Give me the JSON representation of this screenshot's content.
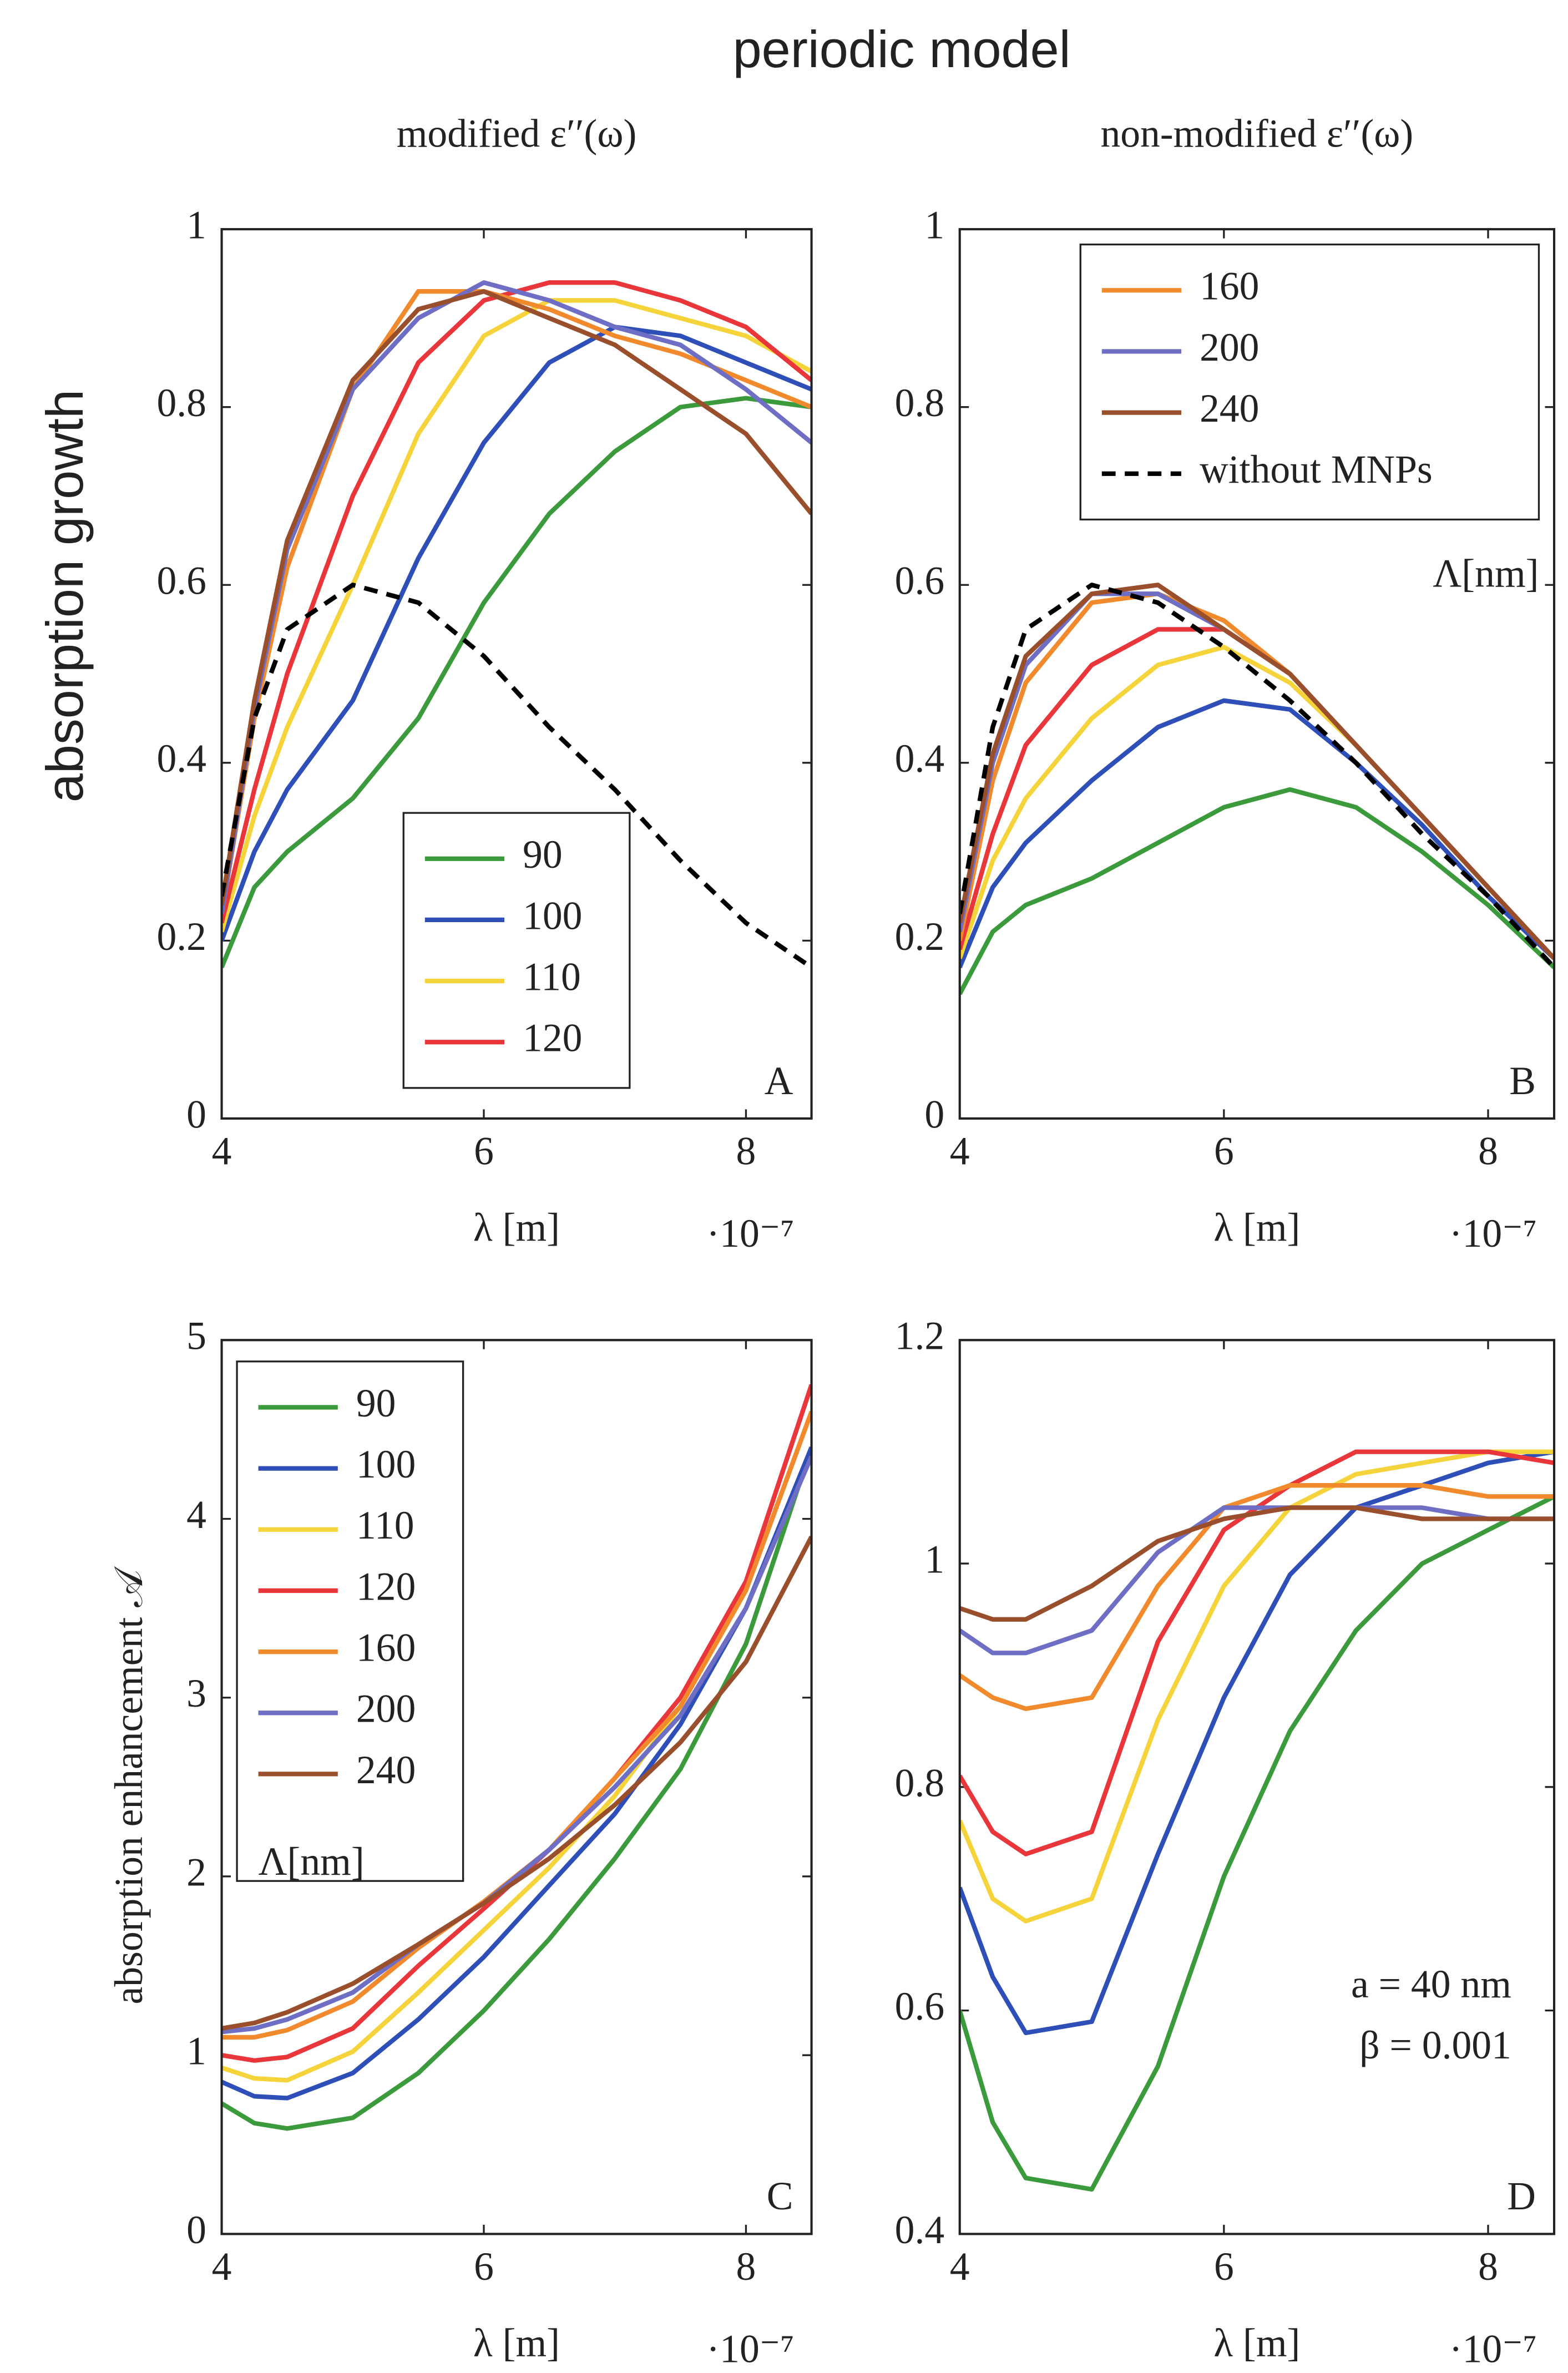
{
  "title": "periodic model",
  "ylabel": "absorption growth",
  "chart_data": [
    {
      "type": "line",
      "subtitle": "modified ε′′(ω)",
      "xlabel": "λ [m]",
      "x_multiplier": "·10⁻⁷",
      "panel_label": "A",
      "legend_loc": "lower center",
      "x": [
        4,
        4.25,
        4.5,
        5,
        5.5,
        6,
        6.5,
        7,
        7.5,
        8,
        8.5
      ],
      "xlim": [
        4,
        8.5
      ],
      "xticks": [
        4,
        6,
        8
      ],
      "ylim": [
        0,
        1
      ],
      "yticks": [
        0,
        0.2,
        0.4,
        0.6,
        0.8,
        1
      ],
      "series": [
        {
          "name": "90",
          "color": "#3b9a3b",
          "values": [
            0.17,
            0.26,
            0.3,
            0.36,
            0.45,
            0.58,
            0.68,
            0.75,
            0.8,
            0.81,
            0.8
          ]
        },
        {
          "name": "100",
          "color": "#2f4fb8",
          "values": [
            0.2,
            0.3,
            0.37,
            0.47,
            0.63,
            0.76,
            0.85,
            0.89,
            0.88,
            0.85,
            0.82
          ]
        },
        {
          "name": "110",
          "color": "#f5d33a",
          "values": [
            0.21,
            0.34,
            0.44,
            0.6,
            0.77,
            0.88,
            0.92,
            0.92,
            0.9,
            0.88,
            0.84
          ]
        },
        {
          "name": "120",
          "color": "#e8363a",
          "values": [
            0.22,
            0.37,
            0.5,
            0.7,
            0.85,
            0.92,
            0.94,
            0.94,
            0.92,
            0.89,
            0.83
          ]
        },
        {
          "color": "#f08a2c",
          "values": [
            0.23,
            0.45,
            0.62,
            0.82,
            0.93,
            0.93,
            0.91,
            0.88,
            0.86,
            0.83,
            0.8
          ]
        },
        {
          "color": "#6e6ec4",
          "values": [
            0.23,
            0.46,
            0.64,
            0.82,
            0.9,
            0.94,
            0.92,
            0.89,
            0.87,
            0.82,
            0.76
          ]
        },
        {
          "color": "#9a4f2c",
          "values": [
            0.24,
            0.47,
            0.65,
            0.83,
            0.91,
            0.93,
            0.9,
            0.87,
            0.82,
            0.77,
            0.68
          ]
        },
        {
          "color": "#000000",
          "style": "dashed",
          "values": [
            0.25,
            0.45,
            0.55,
            0.6,
            0.58,
            0.52,
            0.44,
            0.37,
            0.29,
            0.22,
            0.17
          ]
        }
      ]
    },
    {
      "type": "line",
      "subtitle": "non-modified ε′′(ω)",
      "xlabel": "λ [m]",
      "x_multiplier": "·10⁻⁷",
      "panel_label": "B",
      "legend_loc": "upper right",
      "legend_title": "Λ[nm]",
      "x": [
        4,
        4.25,
        4.5,
        5,
        5.5,
        6,
        6.5,
        7,
        7.5,
        8,
        8.5
      ],
      "xlim": [
        4,
        8.5
      ],
      "xticks": [
        4,
        6,
        8
      ],
      "ylim": [
        0,
        1
      ],
      "yticks": [
        0,
        0.2,
        0.4,
        0.6,
        0.8,
        1
      ],
      "series": [
        {
          "color": "#3b9a3b",
          "values": [
            0.14,
            0.21,
            0.24,
            0.27,
            0.31,
            0.35,
            0.37,
            0.35,
            0.3,
            0.24,
            0.17
          ]
        },
        {
          "color": "#2f4fb8",
          "values": [
            0.17,
            0.26,
            0.31,
            0.38,
            0.44,
            0.47,
            0.46,
            0.4,
            0.33,
            0.25,
            0.18
          ]
        },
        {
          "color": "#f5d33a",
          "values": [
            0.18,
            0.29,
            0.36,
            0.45,
            0.51,
            0.53,
            0.49,
            0.42,
            0.34,
            0.26,
            0.18
          ]
        },
        {
          "color": "#e8363a",
          "values": [
            0.19,
            0.32,
            0.42,
            0.51,
            0.55,
            0.55,
            0.5,
            0.42,
            0.34,
            0.26,
            0.18
          ]
        },
        {
          "name": "160",
          "color": "#f08a2c",
          "values": [
            0.2,
            0.38,
            0.49,
            0.58,
            0.59,
            0.56,
            0.5,
            0.42,
            0.34,
            0.26,
            0.18
          ]
        },
        {
          "name": "200",
          "color": "#6e6ec4",
          "values": [
            0.21,
            0.4,
            0.51,
            0.59,
            0.59,
            0.55,
            0.5,
            0.42,
            0.34,
            0.26,
            0.18
          ]
        },
        {
          "name": "240",
          "color": "#9a4f2c",
          "values": [
            0.22,
            0.41,
            0.52,
            0.59,
            0.6,
            0.55,
            0.5,
            0.42,
            0.34,
            0.26,
            0.18
          ]
        },
        {
          "name": "without MNPs",
          "color": "#000000",
          "style": "dashed",
          "values": [
            0.23,
            0.44,
            0.55,
            0.6,
            0.58,
            0.53,
            0.47,
            0.4,
            0.32,
            0.25,
            0.17
          ]
        }
      ]
    },
    {
      "type": "line",
      "ylabel": "absorption enhancement 𝒜",
      "xlabel": "λ [m]",
      "x_multiplier": "·10⁻⁷",
      "panel_label": "C",
      "legend_loc": "upper left",
      "legend_title": "Λ[nm]",
      "x": [
        4,
        4.25,
        4.5,
        5,
        5.5,
        6,
        6.5,
        7,
        7.5,
        8,
        8.5
      ],
      "xlim": [
        4,
        8.5
      ],
      "xticks": [
        4,
        6,
        8
      ],
      "ylim": [
        0,
        5
      ],
      "yticks": [
        0,
        1,
        2,
        3,
        4,
        5
      ],
      "series": [
        {
          "name": "90",
          "color": "#3b9a3b",
          "values": [
            0.73,
            0.62,
            0.59,
            0.65,
            0.9,
            1.25,
            1.65,
            2.1,
            2.6,
            3.3,
            4.4
          ]
        },
        {
          "name": "100",
          "color": "#2f4fb8",
          "values": [
            0.85,
            0.77,
            0.76,
            0.9,
            1.2,
            1.55,
            1.95,
            2.35,
            2.85,
            3.5,
            4.4
          ]
        },
        {
          "name": "110",
          "color": "#f5d33a",
          "values": [
            0.93,
            0.87,
            0.86,
            1.02,
            1.35,
            1.7,
            2.05,
            2.45,
            2.95,
            3.6,
            4.6
          ]
        },
        {
          "name": "120",
          "color": "#e8363a",
          "values": [
            1.0,
            0.97,
            0.99,
            1.15,
            1.5,
            1.82,
            2.15,
            2.55,
            3.0,
            3.65,
            4.75
          ]
        },
        {
          "name": "160",
          "color": "#f08a2c",
          "values": [
            1.1,
            1.1,
            1.14,
            1.3,
            1.6,
            1.86,
            2.15,
            2.55,
            2.95,
            3.6,
            4.6
          ]
        },
        {
          "name": "200",
          "color": "#6e6ec4",
          "values": [
            1.13,
            1.15,
            1.2,
            1.35,
            1.62,
            1.85,
            2.15,
            2.5,
            2.9,
            3.5,
            4.35
          ]
        },
        {
          "name": "240",
          "color": "#9a4f2c",
          "values": [
            1.15,
            1.18,
            1.24,
            1.4,
            1.62,
            1.85,
            2.1,
            2.4,
            2.75,
            3.2,
            3.9
          ]
        }
      ]
    },
    {
      "type": "line",
      "xlabel": "λ [m]",
      "x_multiplier": "·10⁻⁷",
      "panel_label": "D",
      "annotations": [
        "a = 40 nm",
        "β = 0.001"
      ],
      "x": [
        4,
        4.25,
        4.5,
        5,
        5.5,
        6,
        6.5,
        7,
        7.5,
        8,
        8.5
      ],
      "xlim": [
        4,
        8.5
      ],
      "xticks": [
        4,
        6,
        8
      ],
      "ylim": [
        0.4,
        1.2
      ],
      "yticks": [
        0.4,
        0.6,
        0.8,
        1,
        1.2
      ],
      "series": [
        {
          "color": "#3b9a3b",
          "values": [
            0.6,
            0.5,
            0.45,
            0.44,
            0.55,
            0.72,
            0.85,
            0.94,
            1.0,
            1.03,
            1.06
          ]
        },
        {
          "color": "#2f4fb8",
          "values": [
            0.71,
            0.63,
            0.58,
            0.59,
            0.74,
            0.88,
            0.99,
            1.05,
            1.07,
            1.09,
            1.1
          ]
        },
        {
          "color": "#f5d33a",
          "values": [
            0.77,
            0.7,
            0.68,
            0.7,
            0.86,
            0.98,
            1.05,
            1.08,
            1.09,
            1.1,
            1.1
          ]
        },
        {
          "color": "#e8363a",
          "values": [
            0.81,
            0.76,
            0.74,
            0.76,
            0.93,
            1.03,
            1.07,
            1.1,
            1.1,
            1.1,
            1.09
          ]
        },
        {
          "color": "#f08a2c",
          "values": [
            0.9,
            0.88,
            0.87,
            0.88,
            0.98,
            1.05,
            1.07,
            1.07,
            1.07,
            1.06,
            1.06
          ]
        },
        {
          "color": "#6e6ec4",
          "values": [
            0.94,
            0.92,
            0.92,
            0.94,
            1.01,
            1.05,
            1.05,
            1.05,
            1.05,
            1.04,
            1.04
          ]
        },
        {
          "color": "#9a4f2c",
          "values": [
            0.96,
            0.95,
            0.95,
            0.98,
            1.02,
            1.04,
            1.05,
            1.05,
            1.04,
            1.04,
            1.04
          ]
        }
      ]
    }
  ]
}
